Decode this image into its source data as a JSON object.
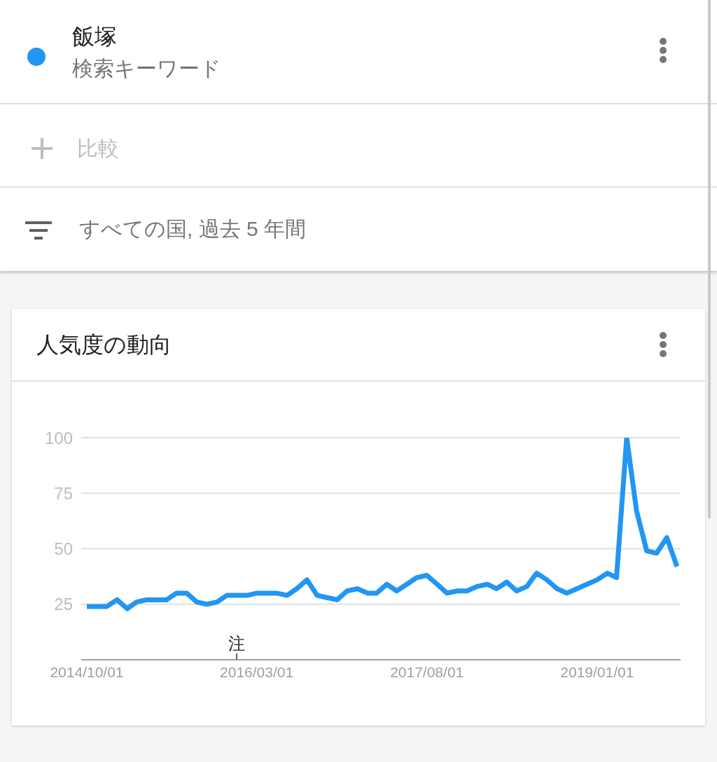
{
  "chart_data": {
    "type": "line",
    "title": "人気度の動向",
    "x": [
      "2014-10",
      "2014-11",
      "2014-12",
      "2015-01",
      "2015-02",
      "2015-03",
      "2015-04",
      "2015-05",
      "2015-06",
      "2015-07",
      "2015-08",
      "2015-09",
      "2015-10",
      "2015-11",
      "2015-12",
      "2016-01",
      "2016-02",
      "2016-03",
      "2016-04",
      "2016-05",
      "2016-06",
      "2016-07",
      "2016-08",
      "2016-09",
      "2016-10",
      "2016-11",
      "2016-12",
      "2017-01",
      "2017-02",
      "2017-03",
      "2017-04",
      "2017-05",
      "2017-06",
      "2017-07",
      "2017-08",
      "2017-09",
      "2017-10",
      "2017-11",
      "2017-12",
      "2018-01",
      "2018-02",
      "2018-03",
      "2018-04",
      "2018-05",
      "2018-06",
      "2018-07",
      "2018-08",
      "2018-09",
      "2018-10",
      "2018-11",
      "2018-12",
      "2019-01",
      "2019-02",
      "2019-03",
      "2019-04",
      "2019-05",
      "2019-06",
      "2019-07",
      "2019-08",
      "2019-09"
    ],
    "series": [
      {
        "name": "飯塚",
        "color": "#2196f3",
        "values": [
          24,
          24,
          24,
          27,
          23,
          26,
          27,
          27,
          27,
          30,
          30,
          26,
          25,
          26,
          29,
          29,
          29,
          30,
          30,
          30,
          29,
          32,
          36,
          29,
          28,
          27,
          31,
          32,
          30,
          30,
          34,
          31,
          34,
          37,
          38,
          34,
          30,
          31,
          31,
          33,
          34,
          32,
          35,
          31,
          33,
          39,
          36,
          32,
          30,
          32,
          34,
          36,
          39,
          37,
          100,
          67,
          49,
          48,
          55,
          42
        ]
      }
    ],
    "xlim": [
      "2014-09-14",
      "2019-09-12"
    ],
    "xticks": [
      {
        "value": "2014-10-01",
        "label": "2014/10/01"
      },
      {
        "value": "2016-03-01",
        "label": "2016/03/01"
      },
      {
        "value": "2017-08-01",
        "label": "2017/08/01"
      },
      {
        "value": "2019-01-01",
        "label": "2019/01/01"
      }
    ],
    "ylim": [
      0,
      100
    ],
    "yticks": [
      25,
      50,
      75,
      100
    ],
    "grid": "y",
    "legend": "top",
    "annotations": [
      "検索キーワード",
      "比較",
      "すべての国, 過去 5 年間",
      "注"
    ]
  }
}
